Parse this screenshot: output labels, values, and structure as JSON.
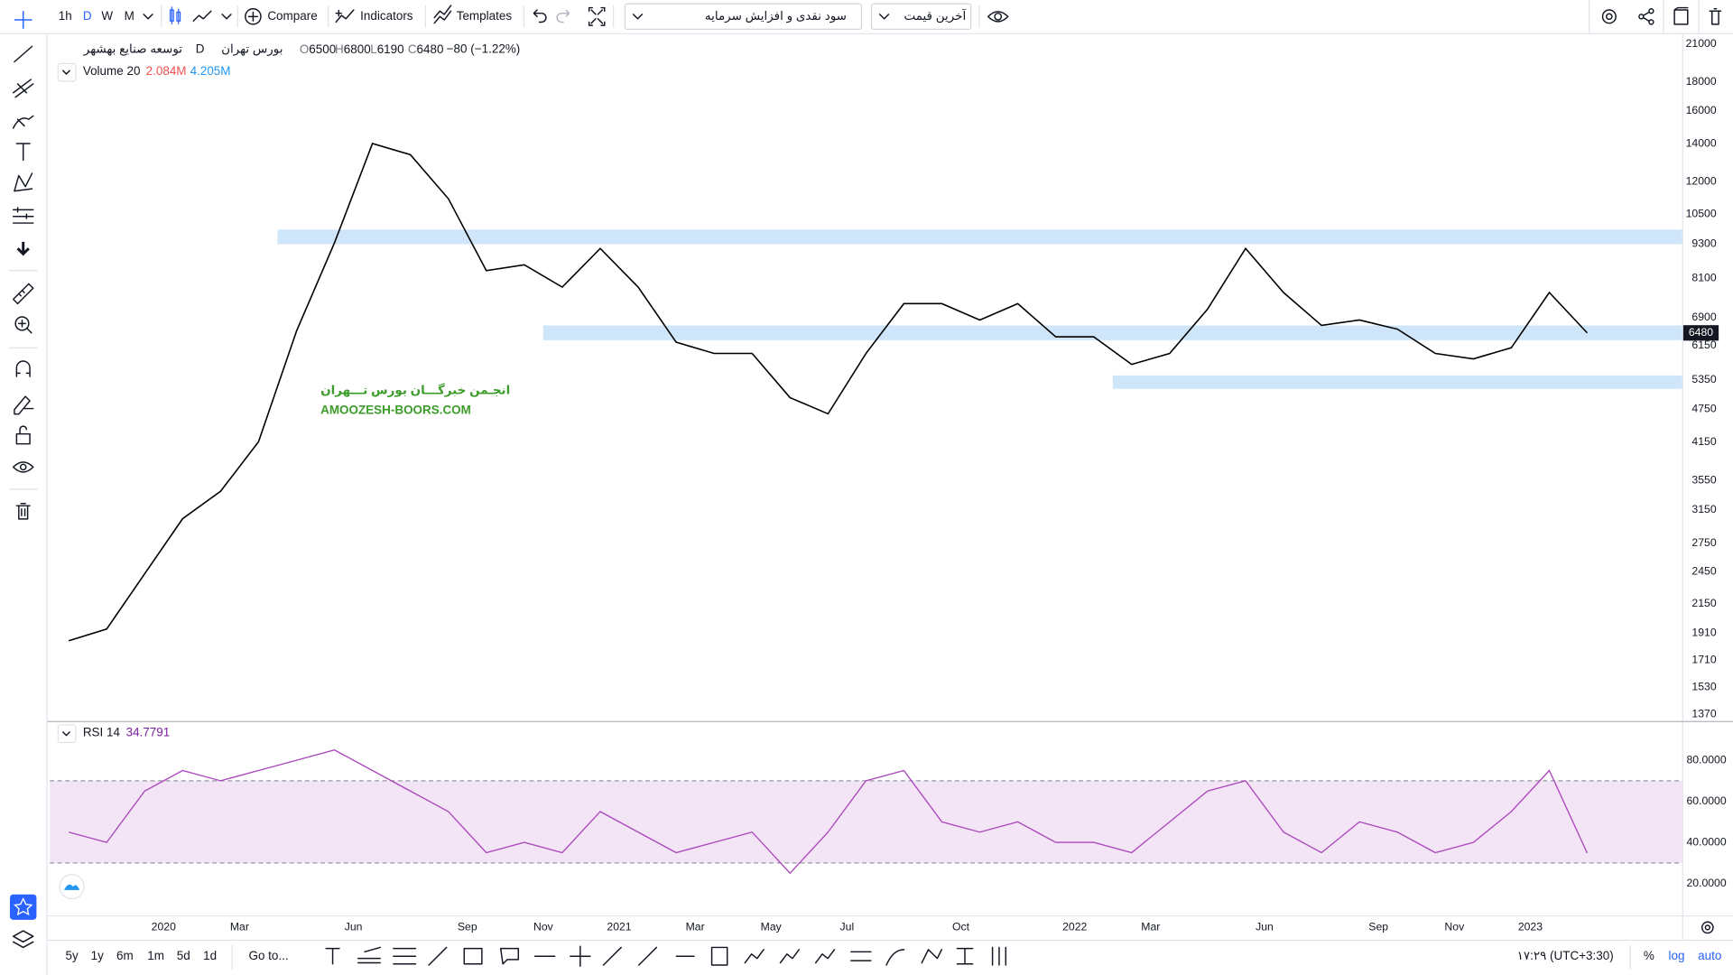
{
  "toolbar": {
    "intervals": [
      "1h",
      "D",
      "W",
      "M"
    ],
    "active_interval": 1,
    "compare": "Compare",
    "indicators": "Indicators",
    "templates": "Templates",
    "dividend_menu": "سود نقدی و افزایش سرمایه",
    "price_menu": "آخرین قیمت"
  },
  "legend": {
    "symbol": "توسعه صنایع بهشهر",
    "interval": "D",
    "exchange": "بورس تهران",
    "ohlc": [
      {
        "label": "O",
        "value": 6500
      },
      {
        "label": "H",
        "value": 6800
      },
      {
        "label": "L",
        "value": 6190
      },
      {
        "label": "C",
        "value": 6480
      }
    ],
    "change": "−80 (−1.22%)",
    "volume_title": "Volume 20",
    "volume_value": "2.084M",
    "volume_ma": "4.205M"
  },
  "watermark": {
    "line1": "انجـمن خبرگـــان بورس تـــهران",
    "line2": "AMOOZESH-BOORS.COM"
  },
  "bottom": {
    "ranges": [
      "5y",
      "1y",
      "6m",
      "1m",
      "5d",
      "1d"
    ],
    "goto": "Go to...",
    "clock": "۱۷:۲۹ (UTC+3:30)",
    "percent": "%",
    "log": "log",
    "auto": "auto"
  },
  "chart_data": [
    {
      "type": "line",
      "color": "#000000",
      "log": true,
      "x": [
        "2019-10",
        "2019-11",
        "2019-12",
        "2020-01",
        "2020-02",
        "2020-03",
        "2020-04",
        "2020-05",
        "2020-06",
        "2020-07",
        "2020-08",
        "2020-09",
        "2020-10",
        "2020-11",
        "2020-12",
        "2021-01",
        "2021-02",
        "2021-03",
        "2021-04",
        "2021-05",
        "2021-06",
        "2021-07",
        "2021-08",
        "2021-09",
        "2021-10",
        "2021-11",
        "2021-12",
        "2022-01",
        "2022-02",
        "2022-03",
        "2022-04",
        "2022-05",
        "2022-06",
        "2022-07",
        "2022-08",
        "2022-09",
        "2022-10",
        "2022-11",
        "2022-12",
        "2023-01",
        "2023-02"
      ],
      "values": [
        1850,
        1940,
        2430,
        3040,
        3400,
        4160,
        6530,
        9350,
        14010,
        13390,
        11190,
        8350,
        8550,
        7810,
        9140,
        7810,
        6240,
        5960,
        5960,
        4980,
        4660,
        5960,
        7300,
        7300,
        6830,
        7300,
        6380,
        6380,
        5700,
        5960,
        7140,
        9140,
        7640,
        6680,
        6830,
        6580,
        5960,
        5830,
        6100,
        7640,
        6480
      ],
      "zones": [
        {
          "start": "2020-04",
          "low": 9300,
          "high": 9870,
          "color": "#cfe6fa"
        },
        {
          "start": "2020-11",
          "low": 6290,
          "high": 6680,
          "color": "#cfe6fa"
        },
        {
          "start": "2022-02",
          "low": 5160,
          "high": 5450,
          "color": "#cfe6fa"
        }
      ],
      "xlim": [
        "2019-10",
        "2023-05"
      ],
      "xticks": [
        {
          "value": "2020-01",
          "label": "2020"
        },
        {
          "value": "2020-03",
          "label": "Mar"
        },
        {
          "value": "2020-06",
          "label": "Jun"
        },
        {
          "value": "2020-09",
          "label": "Sep"
        },
        {
          "value": "2020-11",
          "label": "Nov"
        },
        {
          "value": "2021-01",
          "label": "2021"
        },
        {
          "value": "2021-03",
          "label": "Mar"
        },
        {
          "value": "2021-05",
          "label": "May"
        },
        {
          "value": "2021-07",
          "label": "Jul"
        },
        {
          "value": "2021-10",
          "label": "Oct"
        },
        {
          "value": "2022-01",
          "label": "2022"
        },
        {
          "value": "2022-03",
          "label": "Mar"
        },
        {
          "value": "2022-06",
          "label": "Jun"
        },
        {
          "value": "2022-09",
          "label": "Sep"
        },
        {
          "value": "2022-11",
          "label": "Nov"
        },
        {
          "value": "2023-01",
          "label": "2023"
        }
      ],
      "ylim": [
        1340,
        21770
      ],
      "yticks": [
        21000,
        18000,
        16000,
        14000,
        12000,
        10500,
        9300,
        8100,
        6900,
        6150,
        5350,
        4750,
        4150,
        3550,
        3150,
        2750,
        2450,
        2150,
        1910,
        1710,
        1530,
        1370
      ]
    },
    {
      "type": "line",
      "title": "RSI 14",
      "color": "#ab47bc",
      "band": [
        30,
        70
      ],
      "band_color": "#f3e5f5",
      "values": [
        45,
        40,
        65,
        75,
        70,
        75,
        80,
        85,
        75,
        65,
        55,
        35,
        40,
        35,
        55,
        45,
        35,
        40,
        45,
        25,
        45,
        70,
        75,
        50,
        45,
        50,
        40,
        40,
        35,
        50,
        65,
        70,
        45,
        35,
        50,
        45,
        35,
        40,
        55,
        75,
        34.7791
      ],
      "ylim": [
        5,
        98
      ],
      "yticks": [
        {
          "value": 80,
          "label": "80.0000"
        },
        {
          "value": 60,
          "label": "60.0000"
        },
        {
          "value": 40,
          "label": "40.0000"
        },
        {
          "value": 20,
          "label": "20.0000"
        }
      ]
    }
  ]
}
